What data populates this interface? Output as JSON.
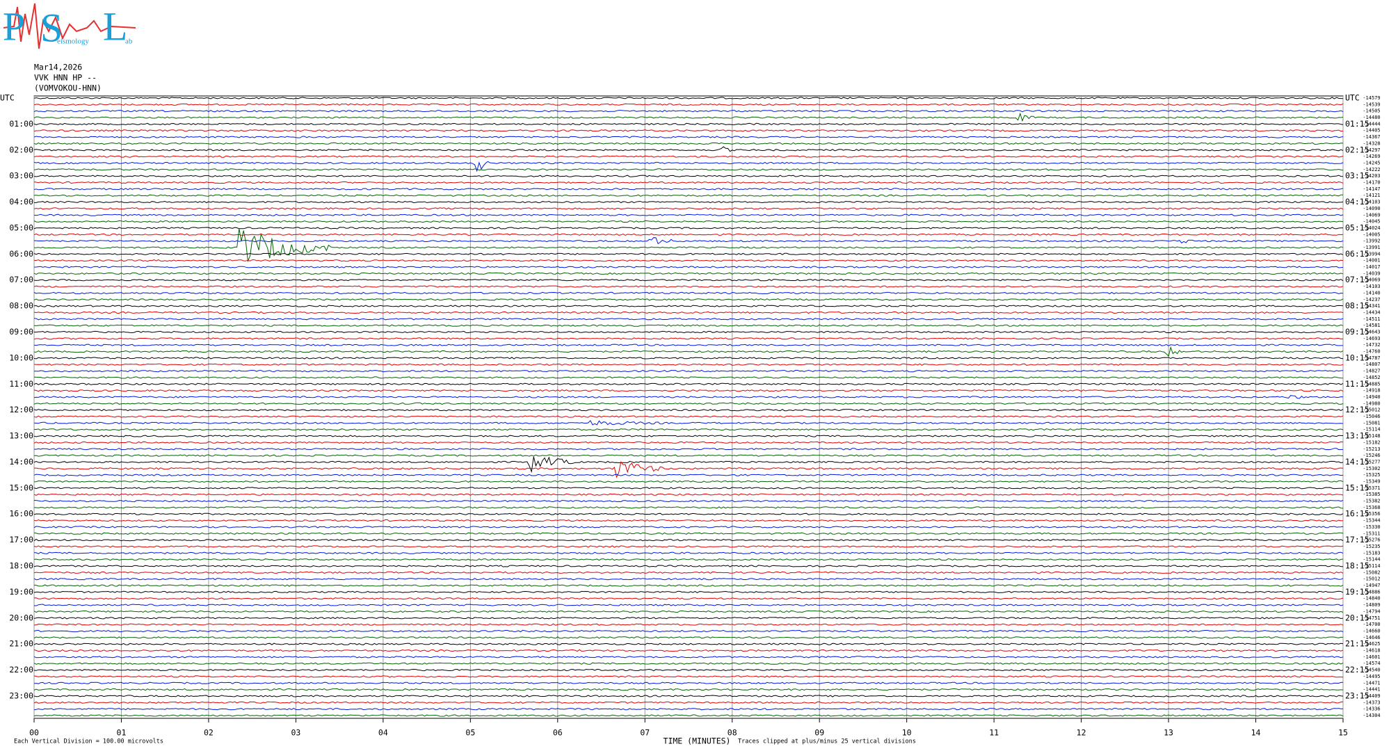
{
  "logo": {
    "letters": [
      "P",
      "S",
      "L"
    ],
    "small": [
      "eismology",
      "ab"
    ]
  },
  "header": {
    "date": "Mar14,2026",
    "station": "VVK HNN HP --",
    "site": "(VOMVOKOU-HNN)"
  },
  "left_labels": [
    "UTC",
    "01:00",
    "02:00",
    "03:00",
    "04:00",
    "05:00",
    "06:00",
    "07:00",
    "08:00",
    "09:00",
    "10:00",
    "11:00",
    "12:00",
    "13:00",
    "14:00",
    "15:00",
    "16:00",
    "17:00",
    "18:00",
    "19:00",
    "20:00",
    "21:00",
    "22:00",
    "23:00"
  ],
  "right_labels": [
    "UTC",
    "01:15",
    "02:15",
    "03:15",
    "04:15",
    "05:15",
    "06:15",
    "07:15",
    "08:15",
    "09:15",
    "10:15",
    "11:15",
    "12:15",
    "13:15",
    "14:15",
    "15:15",
    "16:15",
    "17:15",
    "18:15",
    "19:15",
    "20:15",
    "21:15",
    "22:15",
    "23:15"
  ],
  "row_offsets": [
    "-14579",
    "-14539",
    "-14505",
    "-14480",
    "-14444",
    "-14405",
    "-14367",
    "-14328",
    "-14297",
    "-14269",
    "-14245",
    "-14222",
    "-14203",
    "-14170",
    "-14147",
    "-14121",
    "-14103",
    "-14090",
    "-14069",
    "-14045",
    "-14024",
    "-14005",
    "-13992",
    "-13991",
    "-13994",
    "-14001",
    "-14017",
    "-14039",
    "-14069",
    "-14103",
    "-14140",
    "-14237",
    "-14341",
    "-14434",
    "-14511",
    "-14581",
    "-14643",
    "-14693",
    "-14732",
    "-14760",
    "-14787",
    "-14807",
    "-14827",
    "-14852",
    "-14885",
    "-14918",
    "-14940",
    "-14980",
    "-15012",
    "-15046",
    "-15081",
    "-15114",
    "-15148",
    "-15182",
    "-15213",
    "-15246",
    "-15277",
    "-15302",
    "-15325",
    "-15349",
    "-15371",
    "-15385",
    "-15382",
    "-15368",
    "-15356",
    "-15344",
    "-15330",
    "-15311",
    "-15276",
    "-15235",
    "-15183",
    "-15144",
    "-15114",
    "-15082",
    "-15012",
    "-14947",
    "-14886",
    "-14840",
    "-14809",
    "-14794",
    "-14751",
    "-14700",
    "-14660",
    "-14646",
    "-14625",
    "-14618",
    "-14601",
    "-14574",
    "-14540",
    "-14495",
    "-14471",
    "-14441",
    "-14409",
    "-14373",
    "-14336",
    "-14304"
  ],
  "x_ticks": [
    "00",
    "01",
    "02",
    "03",
    "04",
    "05",
    "06",
    "07",
    "08",
    "09",
    "10",
    "11",
    "12",
    "13",
    "14",
    "15"
  ],
  "x_title": "TIME (MINUTES)",
  "clip_note": "Traces clipped at plus/minus 25 vertical divisions",
  "scale_note": "Each Vertical Division =  100.00 microvolts"
}
